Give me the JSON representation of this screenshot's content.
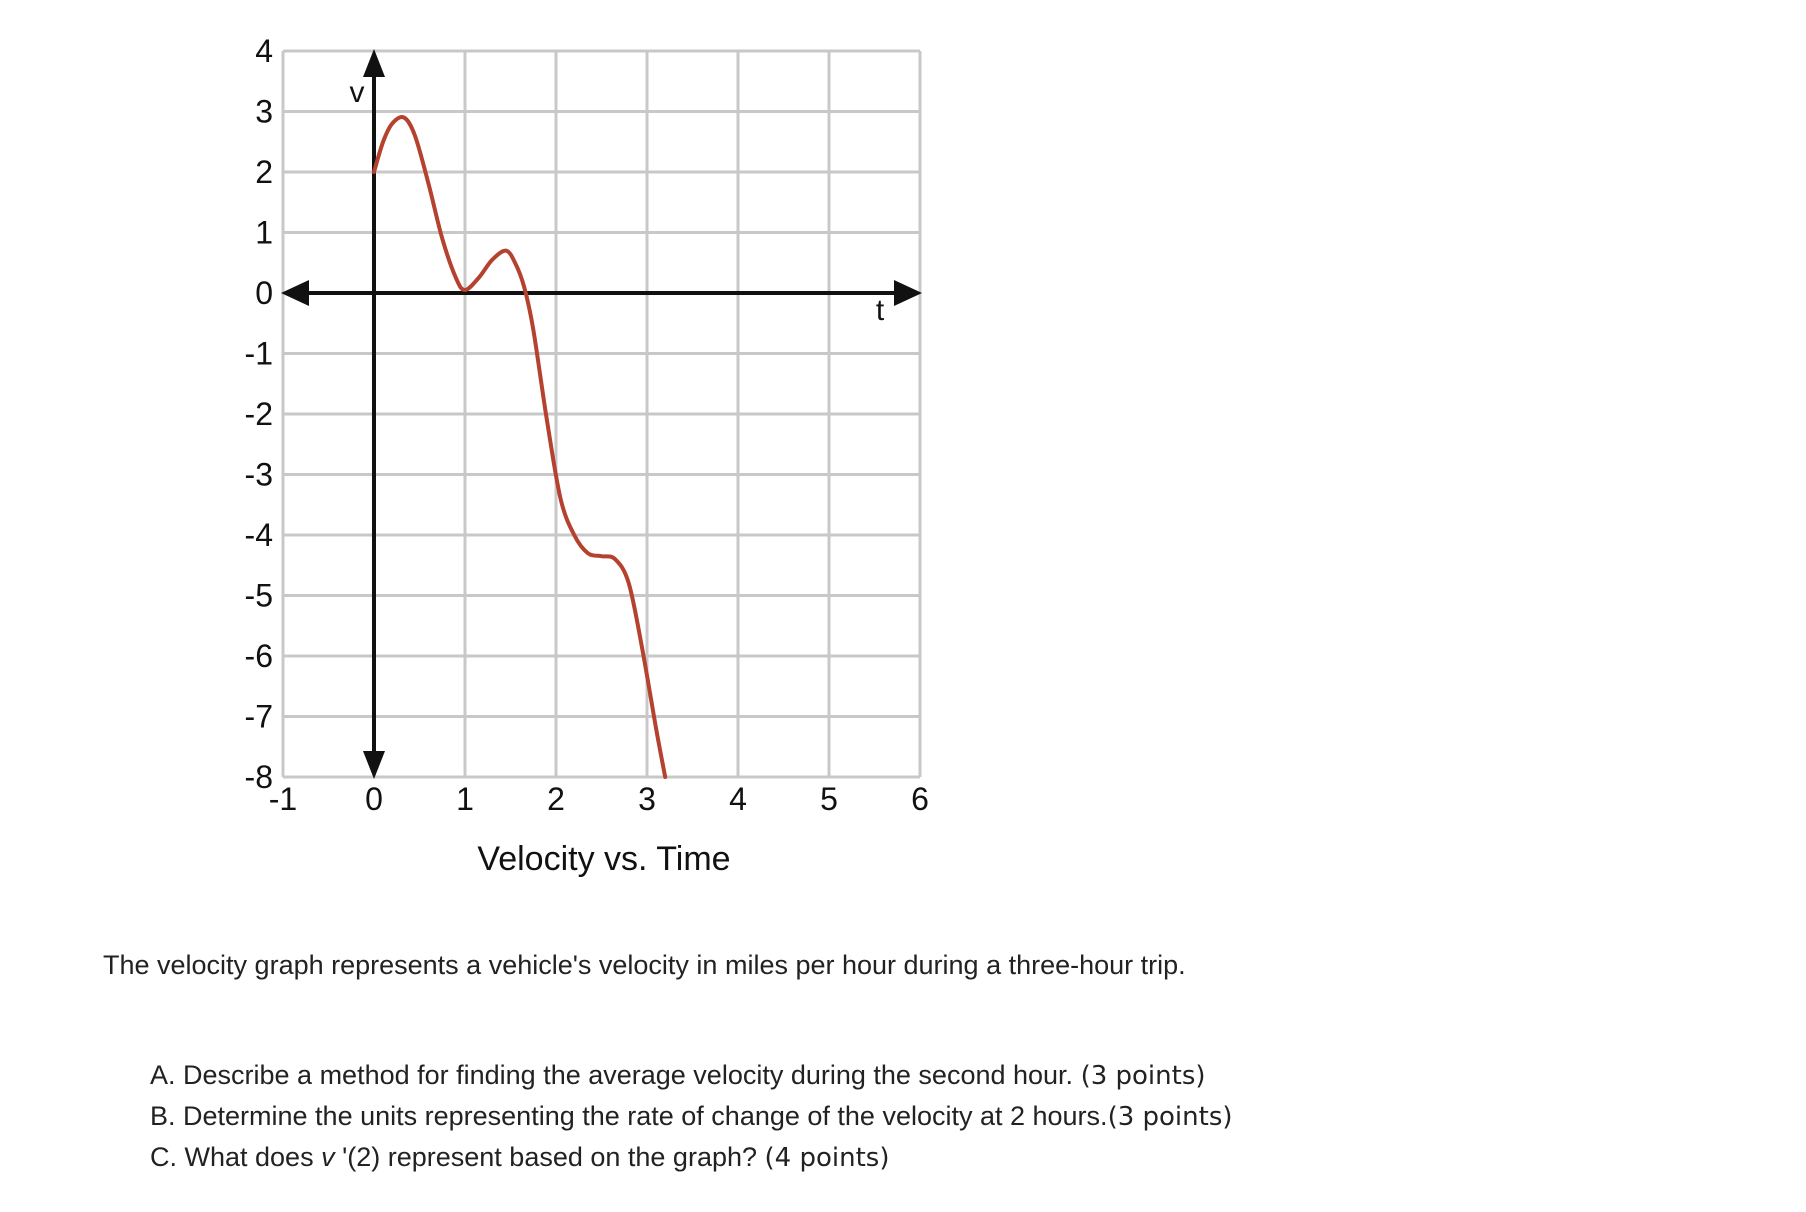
{
  "chart_data": {
    "type": "line",
    "title": "Velocity vs. Time",
    "xlabel": "t",
    "ylabel": "v",
    "xlim": [
      -1,
      6
    ],
    "ylim": [
      -8,
      4
    ],
    "xticks": [
      "-1",
      "0",
      "1",
      "2",
      "3",
      "4",
      "5",
      "6"
    ],
    "yticks": [
      "4",
      "3",
      "2",
      "1",
      "0",
      "-1",
      "-2",
      "-3",
      "-4",
      "-5",
      "-6",
      "-7",
      "-8"
    ],
    "grid": true,
    "series": [
      {
        "color": "#b5412f",
        "x": [
          0,
          0.1,
          0.2,
          0.33,
          0.45,
          0.6,
          0.75,
          0.9,
          1.0,
          1.15,
          1.3,
          1.45,
          1.55,
          1.65,
          1.75,
          1.9,
          2.05,
          2.2,
          2.35,
          2.5,
          2.65,
          2.8,
          2.95,
          3.1,
          3.2
        ],
        "y": [
          2.0,
          2.5,
          2.8,
          2.9,
          2.6,
          1.8,
          0.9,
          0.25,
          0.05,
          0.25,
          0.55,
          0.7,
          0.5,
          0.1,
          -0.6,
          -2.1,
          -3.4,
          -4.0,
          -4.3,
          -4.35,
          -4.4,
          -4.8,
          -5.9,
          -7.2,
          -8.0
        ]
      }
    ]
  },
  "text": {
    "intro": "The velocity graph represents a vehicle's velocity in miles per hour during a three-hour trip.",
    "questions": [
      {
        "text": "A. Describe a method for finding the average velocity during the second hour. ",
        "points": "(3 points)"
      },
      {
        "text": "B. Determine the units representing the rate of change of the velocity at 2 hours.",
        "points": "(3 points)"
      },
      {
        "text_before": "C. What does ",
        "var": "v",
        "text_after": " '(2) represent based on the graph? ",
        "points": "(4 points)"
      }
    ]
  }
}
